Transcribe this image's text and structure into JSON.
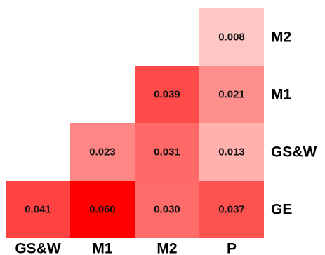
{
  "chart_data": {
    "type": "heatmap",
    "title": "",
    "xlabel": "",
    "ylabel": "",
    "x_categories": [
      "GS&W",
      "M1",
      "M2",
      "P"
    ],
    "y_categories": [
      "M2",
      "M1",
      "GS&W",
      "GE"
    ],
    "values": [
      [
        null,
        null,
        null,
        0.008
      ],
      [
        null,
        null,
        0.039,
        0.021
      ],
      [
        null,
        0.023,
        0.031,
        0.013
      ],
      [
        0.041,
        0.06,
        0.03,
        0.037
      ]
    ],
    "labels": [
      [
        null,
        null,
        null,
        "0.008"
      ],
      [
        null,
        null,
        "0.039",
        "0.021"
      ],
      [
        null,
        "0.023",
        "0.031",
        "0.013"
      ],
      [
        "0.041",
        "0.060",
        "0.030",
        "0.037"
      ]
    ],
    "color_scale": {
      "low": "#fdf3ee",
      "high": "#ff0000",
      "min": 0.0,
      "max": 0.06
    },
    "layout": "lower-triangle"
  }
}
